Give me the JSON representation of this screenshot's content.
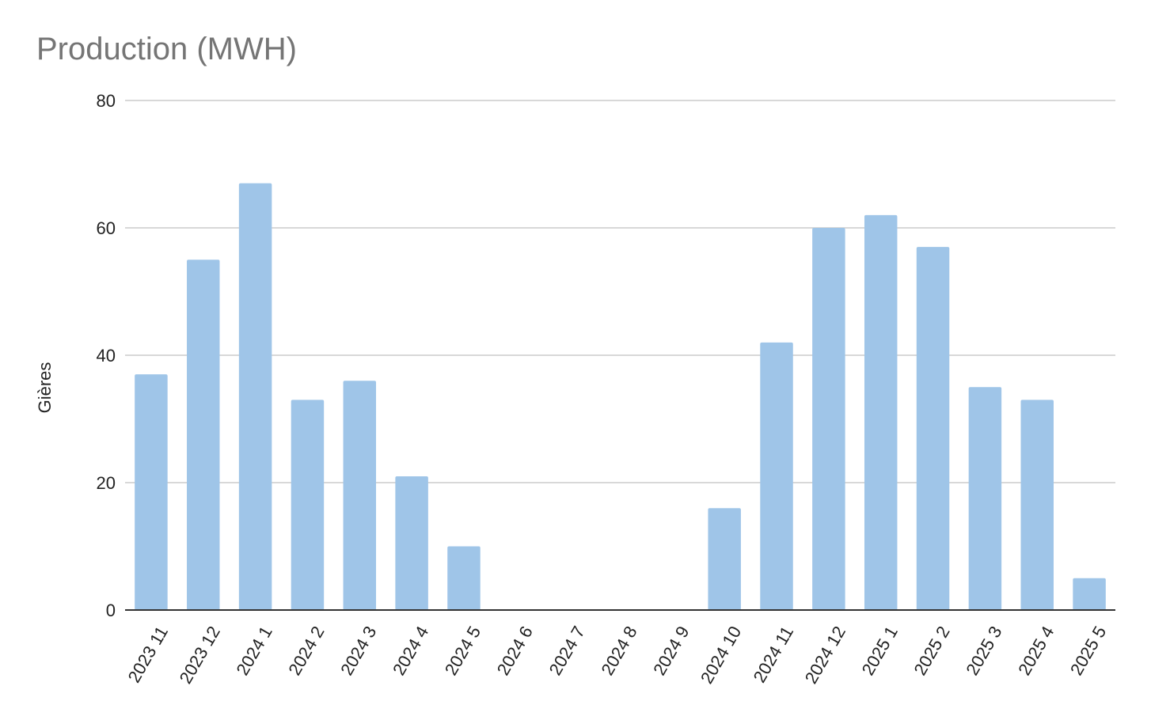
{
  "chart_data": {
    "type": "bar",
    "title": "Production (MWH)",
    "xlabel": "",
    "ylabel": "Gières",
    "ylim": [
      0,
      80
    ],
    "yticks": [
      0,
      20,
      40,
      60,
      80
    ],
    "grid": true,
    "legend": "none",
    "bar_color": "#9fc5e8",
    "categories": [
      "2023 11",
      "2023 12",
      "2024 1",
      "2024 2",
      "2024 3",
      "2024 4",
      "2024 5",
      "2024 6",
      "2024 7",
      "2024 8",
      "2024 9",
      "2024 10",
      "2024 11",
      "2024 12",
      "2025 1",
      "2025 2",
      "2025 3",
      "2025 4",
      "2025 5"
    ],
    "values": [
      37,
      55,
      67,
      33,
      36,
      21,
      10,
      0,
      0,
      0,
      0,
      16,
      42,
      60,
      62,
      57,
      35,
      33,
      5
    ]
  }
}
